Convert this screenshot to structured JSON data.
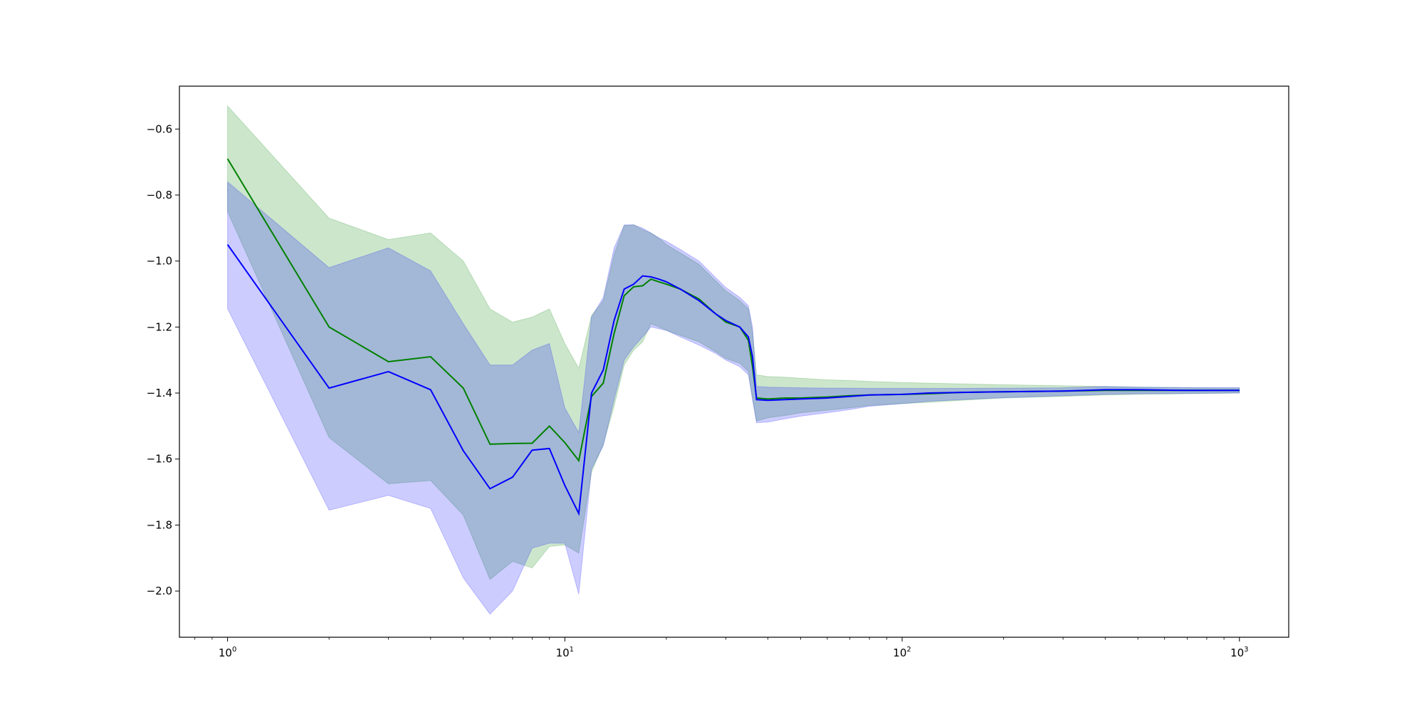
{
  "chart_data": {
    "type": "line",
    "title": "",
    "xlabel": "",
    "ylabel": "",
    "xscale": "log",
    "xlim": [
      0.72,
      1400
    ],
    "ylim": [
      -2.14,
      -0.47
    ],
    "grid": false,
    "x_ticks": [
      {
        "value": 1,
        "base": "10",
        "exp": "0"
      },
      {
        "value": 10,
        "base": "10",
        "exp": "1"
      },
      {
        "value": 100,
        "base": "10",
        "exp": "2"
      },
      {
        "value": 1000,
        "base": "10",
        "exp": "3"
      }
    ],
    "y_ticks": [
      {
        "value": -0.6,
        "label": "−0.6"
      },
      {
        "value": -0.8,
        "label": "−0.8"
      },
      {
        "value": -1.0,
        "label": "−1.0"
      },
      {
        "value": -1.2,
        "label": "−1.2"
      },
      {
        "value": -1.4,
        "label": "−1.4"
      },
      {
        "value": -1.6,
        "label": "−1.6"
      },
      {
        "value": -1.8,
        "label": "−1.8"
      },
      {
        "value": -2.0,
        "label": "−2.0"
      }
    ],
    "series": [
      {
        "color": "#008000",
        "band_color": "#008000",
        "band_opacity": 0.2,
        "x": [
          1,
          2,
          3,
          4,
          5,
          6,
          7,
          8,
          9,
          10,
          11,
          12,
          13,
          14,
          15,
          16,
          17,
          18,
          19,
          20,
          22,
          25,
          28,
          30,
          33,
          35,
          36,
          37,
          40,
          45,
          50,
          60,
          70,
          80,
          100,
          120,
          150,
          200,
          300,
          400,
          500,
          700,
          1000
        ],
        "y": [
          -0.69,
          -1.2,
          -1.305,
          -1.29,
          -1.385,
          -1.555,
          -1.553,
          -1.552,
          -1.5,
          -1.55,
          -1.605,
          -1.41,
          -1.37,
          -1.22,
          -1.105,
          -1.078,
          -1.075,
          -1.055,
          -1.063,
          -1.07,
          -1.085,
          -1.115,
          -1.16,
          -1.185,
          -1.2,
          -1.24,
          -1.32,
          -1.415,
          -1.418,
          -1.415,
          -1.415,
          -1.412,
          -1.408,
          -1.406,
          -1.404,
          -1.402,
          -1.398,
          -1.396,
          -1.394,
          -1.392,
          -1.392,
          -1.392,
          -1.392
        ],
        "upper": [
          -0.53,
          -0.87,
          -0.935,
          -0.915,
          -1.0,
          -1.145,
          -1.185,
          -1.17,
          -1.145,
          -1.25,
          -1.325,
          -1.165,
          -1.12,
          -0.98,
          -0.893,
          -0.89,
          -0.905,
          -0.915,
          -0.93,
          -0.95,
          -0.975,
          -1.01,
          -1.06,
          -1.09,
          -1.12,
          -1.145,
          -1.215,
          -1.345,
          -1.35,
          -1.352,
          -1.355,
          -1.36,
          -1.362,
          -1.365,
          -1.368,
          -1.37,
          -1.372,
          -1.375,
          -1.378,
          -1.38,
          -1.382,
          -1.384,
          -1.385
        ],
        "lower": [
          -0.85,
          -1.535,
          -1.675,
          -1.665,
          -1.77,
          -1.965,
          -1.91,
          -1.93,
          -1.865,
          -1.86,
          -1.885,
          -1.64,
          -1.555,
          -1.44,
          -1.315,
          -1.27,
          -1.245,
          -1.19,
          -1.2,
          -1.21,
          -1.225,
          -1.245,
          -1.275,
          -1.295,
          -1.31,
          -1.335,
          -1.415,
          -1.485,
          -1.475,
          -1.468,
          -1.46,
          -1.452,
          -1.445,
          -1.438,
          -1.432,
          -1.428,
          -1.422,
          -1.415,
          -1.41,
          -1.406,
          -1.404,
          -1.402,
          -1.4
        ]
      },
      {
        "color": "#0000ff",
        "band_color": "#0000ff",
        "band_opacity": 0.2,
        "x": [
          1,
          2,
          3,
          4,
          5,
          6,
          7,
          8,
          9,
          10,
          11,
          12,
          13,
          14,
          15,
          16,
          17,
          18,
          19,
          20,
          22,
          25,
          28,
          30,
          33,
          35,
          36,
          37,
          40,
          45,
          50,
          60,
          70,
          80,
          100,
          120,
          150,
          200,
          300,
          400,
          500,
          700,
          1000
        ],
        "y": [
          -0.95,
          -1.385,
          -1.335,
          -1.39,
          -1.575,
          -1.69,
          -1.655,
          -1.573,
          -1.568,
          -1.68,
          -1.765,
          -1.4,
          -1.33,
          -1.18,
          -1.085,
          -1.07,
          -1.045,
          -1.048,
          -1.055,
          -1.063,
          -1.085,
          -1.12,
          -1.16,
          -1.18,
          -1.2,
          -1.23,
          -1.29,
          -1.42,
          -1.422,
          -1.42,
          -1.418,
          -1.415,
          -1.41,
          -1.406,
          -1.404,
          -1.4,
          -1.398,
          -1.396,
          -1.394,
          -1.39,
          -1.39,
          -1.392,
          -1.392
        ],
        "upper": [
          -0.76,
          -1.02,
          -0.96,
          -1.03,
          -1.19,
          -1.315,
          -1.315,
          -1.27,
          -1.25,
          -1.445,
          -1.52,
          -1.17,
          -1.11,
          -0.96,
          -0.89,
          -0.89,
          -0.9,
          -0.915,
          -0.93,
          -0.94,
          -0.965,
          -1.0,
          -1.05,
          -1.08,
          -1.11,
          -1.135,
          -1.2,
          -1.38,
          -1.382,
          -1.383,
          -1.384,
          -1.385,
          -1.385,
          -1.386,
          -1.386,
          -1.386,
          -1.386,
          -1.385,
          -1.384,
          -1.38,
          -1.382,
          -1.383,
          -1.383
        ],
        "lower": [
          -1.145,
          -1.755,
          -1.71,
          -1.75,
          -1.96,
          -2.07,
          -2.0,
          -1.87,
          -1.855,
          -1.855,
          -2.01,
          -1.63,
          -1.56,
          -1.42,
          -1.3,
          -1.26,
          -1.23,
          -1.2,
          -1.205,
          -1.21,
          -1.23,
          -1.255,
          -1.28,
          -1.3,
          -1.32,
          -1.345,
          -1.42,
          -1.49,
          -1.488,
          -1.478,
          -1.47,
          -1.46,
          -1.45,
          -1.44,
          -1.432,
          -1.425,
          -1.42,
          -1.414,
          -1.408,
          -1.404,
          -1.402,
          -1.401,
          -1.4
        ]
      }
    ]
  }
}
